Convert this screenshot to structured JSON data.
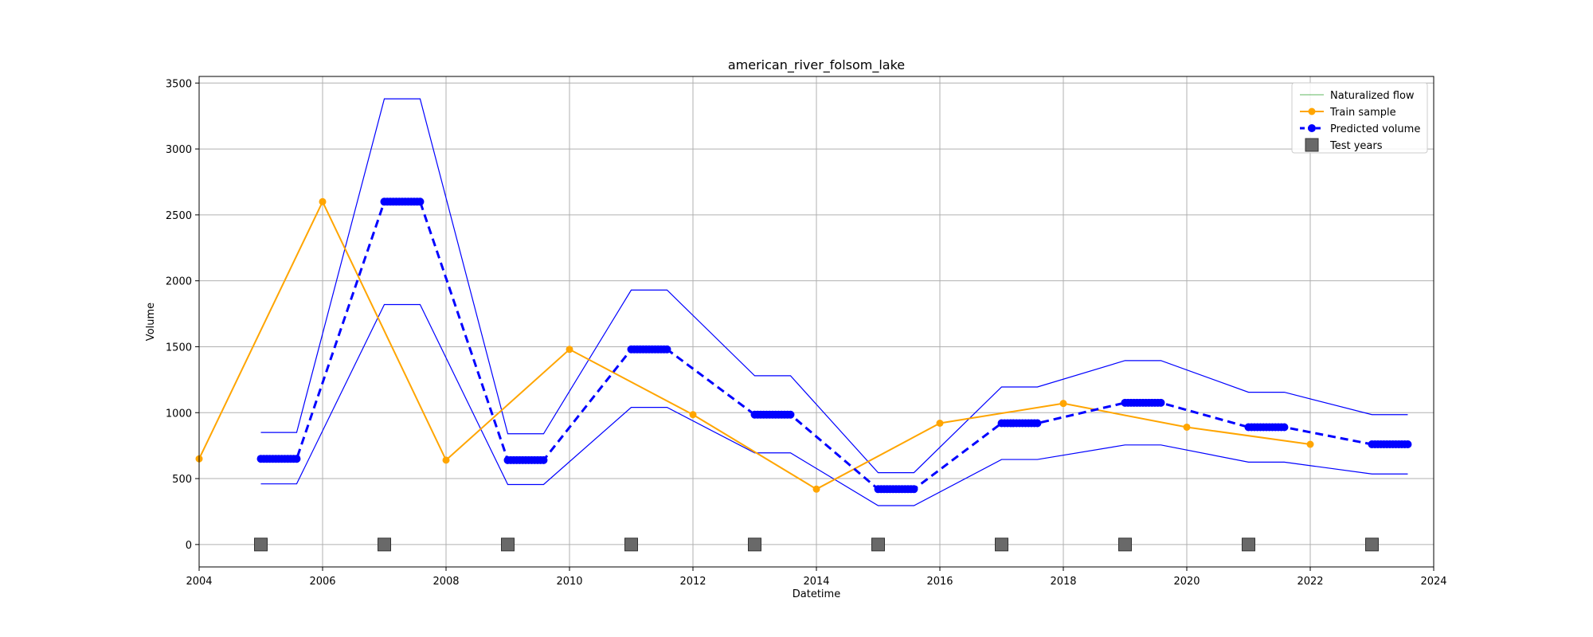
{
  "chart_data": {
    "type": "line",
    "title": "american_river_folsom_lake",
    "xlabel": "Datetime",
    "ylabel": "Volume",
    "xlim": [
      2004,
      2024
    ],
    "ylim": [
      -170,
      3550
    ],
    "xticks": [
      "2004",
      "2006",
      "2008",
      "2010",
      "2012",
      "2014",
      "2016",
      "2018",
      "2020",
      "2022",
      "2024"
    ],
    "yticks": [
      "0",
      "500",
      "1000",
      "1500",
      "2000",
      "2500",
      "3000",
      "3500"
    ],
    "grid": true,
    "legend_position": "top-right",
    "legend": [
      "Naturalized flow",
      "Train sample",
      "Predicted volume",
      "Test years"
    ],
    "series": [
      {
        "name": "Naturalized flow",
        "color": "#2ca02c",
        "style": "line",
        "x": [],
        "y": []
      },
      {
        "name": "Train sample",
        "color": "#ffa500",
        "style": "line-marker",
        "x": [
          2004,
          2006,
          2008,
          2010,
          2012,
          2014,
          2016,
          2018,
          2020,
          2022
        ],
        "y": [
          650,
          2600,
          640,
          1480,
          985,
          420,
          920,
          1070,
          890,
          760
        ]
      },
      {
        "name": "Predicted volume",
        "color": "#0000ff",
        "style": "dashed-marker",
        "segments": [
          {
            "x_start": 2005,
            "x_end": 2005.58,
            "value": 650
          },
          {
            "x_start": 2007,
            "x_end": 2007.58,
            "value": 2600
          },
          {
            "x_start": 2009,
            "x_end": 2009.58,
            "value": 640
          },
          {
            "x_start": 2011,
            "x_end": 2011.58,
            "value": 1480
          },
          {
            "x_start": 2013,
            "x_end": 2013.58,
            "value": 985
          },
          {
            "x_start": 2015,
            "x_end": 2015.58,
            "value": 420
          },
          {
            "x_start": 2017,
            "x_end": 2017.58,
            "value": 920
          },
          {
            "x_start": 2019,
            "x_end": 2019.58,
            "value": 1075
          },
          {
            "x_start": 2021,
            "x_end": 2021.58,
            "value": 890
          },
          {
            "x_start": 2023,
            "x_end": 2023.58,
            "value": 760
          }
        ]
      },
      {
        "name": "Upper bound",
        "color": "#0000ff",
        "style": "thin-line",
        "x": [
          2005,
          2005.58,
          2007,
          2007.58,
          2009,
          2009.58,
          2011,
          2011.58,
          2013,
          2013.58,
          2015,
          2015.58,
          2017,
          2017.58,
          2019,
          2019.58,
          2021,
          2021.58,
          2023,
          2023.58
        ],
        "y": [
          850,
          850,
          3380,
          3380,
          840,
          840,
          1930,
          1930,
          1280,
          1280,
          545,
          545,
          1195,
          1195,
          1395,
          1395,
          1155,
          1155,
          985,
          985
        ]
      },
      {
        "name": "Lower bound",
        "color": "#0000ff",
        "style": "thin-line",
        "x": [
          2005,
          2005.58,
          2007,
          2007.58,
          2009,
          2009.58,
          2011,
          2011.58,
          2013,
          2013.58,
          2015,
          2015.58,
          2017,
          2017.58,
          2019,
          2019.58,
          2021,
          2021.58,
          2023,
          2023.58
        ],
        "y": [
          460,
          460,
          1820,
          1820,
          455,
          455,
          1040,
          1040,
          695,
          695,
          295,
          295,
          645,
          645,
          755,
          755,
          625,
          625,
          535,
          535
        ]
      },
      {
        "name": "Test years",
        "color": "#696969",
        "style": "square-marker",
        "x": [
          2005,
          2007,
          2009,
          2011,
          2013,
          2015,
          2017,
          2019,
          2021,
          2023
        ],
        "y": [
          0,
          0,
          0,
          0,
          0,
          0,
          0,
          0,
          0,
          0
        ]
      }
    ]
  }
}
